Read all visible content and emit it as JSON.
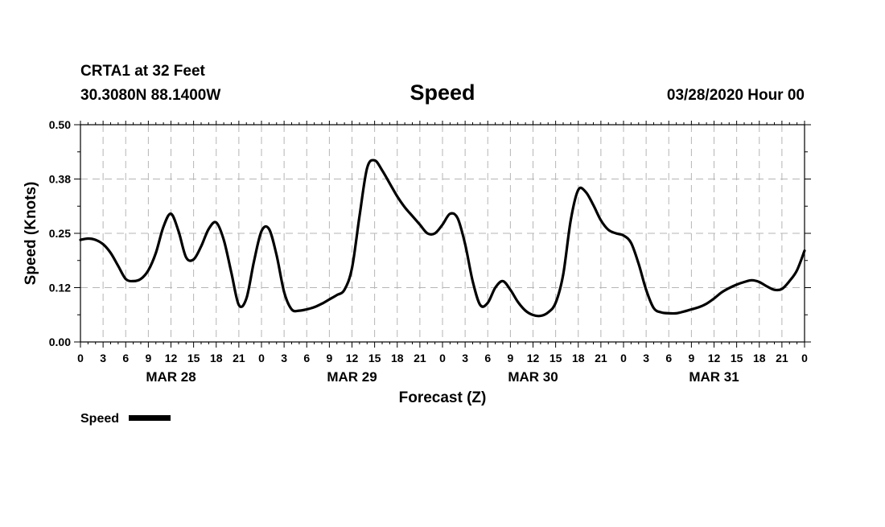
{
  "header": {
    "station": "CRTA1 at 32 Feet",
    "coords": "30.3080N 88.1400W",
    "title": "Speed",
    "run": "03/28/2020 Hour 00"
  },
  "legend": {
    "label": "Speed",
    "color": "#000000"
  },
  "chart_data": {
    "type": "line",
    "title": "Speed",
    "xlabel": "Forecast (Z)",
    "ylabel": "Speed (Knots)",
    "ylim": [
      0,
      0.5
    ],
    "xlim": [
      0,
      96
    ],
    "grid": true,
    "y_ticks": [
      0.0,
      0.125,
      0.25,
      0.375,
      0.5
    ],
    "y_tick_labels": [
      "0.00",
      "0.12",
      "0.25",
      "0.38",
      "0.50"
    ],
    "x_ticks": [
      0,
      3,
      6,
      9,
      12,
      15,
      18,
      21,
      24,
      27,
      30,
      33,
      36,
      39,
      42,
      45,
      48,
      51,
      54,
      57,
      60,
      63,
      66,
      69,
      72,
      75,
      78,
      81,
      84,
      87,
      90,
      93,
      96
    ],
    "x_tick_labels": [
      "0",
      "3",
      "6",
      "9",
      "12",
      "15",
      "18",
      "21",
      "0",
      "3",
      "6",
      "9",
      "12",
      "15",
      "18",
      "21",
      "0",
      "3",
      "6",
      "9",
      "12",
      "15",
      "18",
      "21",
      "0",
      "3",
      "6",
      "9",
      "12",
      "15",
      "18",
      "21",
      "0"
    ],
    "day_labels": [
      {
        "hour": 12,
        "label": "MAR 28"
      },
      {
        "hour": 36,
        "label": "MAR 29"
      },
      {
        "hour": 60,
        "label": "MAR 30"
      },
      {
        "hour": 84,
        "label": "MAR 31"
      }
    ],
    "legend_position": "bottom-left",
    "series": [
      {
        "name": "Speed",
        "x": [
          0,
          1,
          2,
          3,
          4,
          5,
          6,
          7,
          8,
          9,
          10,
          11,
          12,
          13,
          14,
          15,
          16,
          17,
          18,
          19,
          20,
          21,
          22,
          23,
          24,
          25,
          26,
          27,
          28,
          29,
          30,
          31,
          32,
          33,
          34,
          35,
          36,
          37,
          38,
          39,
          40,
          41,
          42,
          43,
          44,
          45,
          46,
          47,
          48,
          49,
          50,
          51,
          52,
          53,
          54,
          55,
          56,
          57,
          58,
          59,
          60,
          61,
          62,
          63,
          64,
          65,
          66,
          67,
          68,
          69,
          70,
          71,
          72,
          73,
          74,
          75,
          76,
          77,
          78,
          79,
          80,
          81,
          82,
          83,
          84,
          85,
          86,
          87,
          88,
          89,
          90,
          91,
          92,
          93,
          94,
          95,
          96
        ],
        "values": [
          0.235,
          0.238,
          0.235,
          0.225,
          0.205,
          0.175,
          0.145,
          0.14,
          0.145,
          0.165,
          0.205,
          0.265,
          0.295,
          0.255,
          0.195,
          0.19,
          0.22,
          0.26,
          0.275,
          0.235,
          0.16,
          0.085,
          0.1,
          0.185,
          0.255,
          0.26,
          0.2,
          0.115,
          0.075,
          0.072,
          0.075,
          0.08,
          0.088,
          0.098,
          0.108,
          0.12,
          0.17,
          0.29,
          0.4,
          0.418,
          0.395,
          0.365,
          0.335,
          0.31,
          0.29,
          0.27,
          0.25,
          0.25,
          0.27,
          0.295,
          0.285,
          0.225,
          0.14,
          0.085,
          0.09,
          0.125,
          0.14,
          0.12,
          0.092,
          0.072,
          0.062,
          0.06,
          0.068,
          0.09,
          0.155,
          0.28,
          0.35,
          0.345,
          0.315,
          0.28,
          0.258,
          0.25,
          0.245,
          0.228,
          0.18,
          0.12,
          0.078,
          0.068,
          0.066,
          0.066,
          0.07,
          0.075,
          0.08,
          0.088,
          0.1,
          0.114,
          0.124,
          0.132,
          0.138,
          0.142,
          0.138,
          0.128,
          0.12,
          0.122,
          0.14,
          0.165,
          0.21
        ]
      }
    ]
  }
}
